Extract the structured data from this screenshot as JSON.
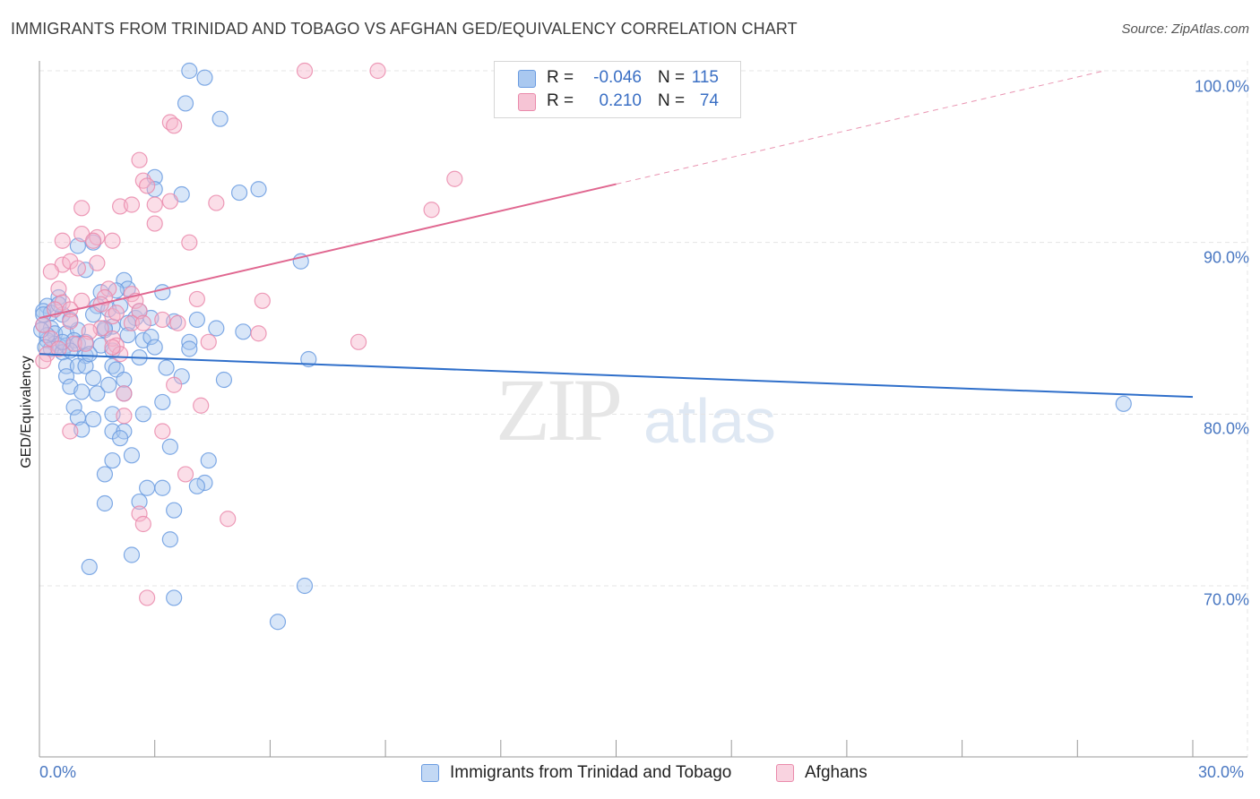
{
  "title": "IMMIGRANTS FROM TRINIDAD AND TOBAGO VS AFGHAN GED/EQUIVALENCY CORRELATION CHART",
  "source": "Source: ZipAtlas.com",
  "watermark": {
    "zip": "ZIP",
    "atlas": "atlas"
  },
  "colors": {
    "blue_fill": "#a9c8f0",
    "blue_stroke": "#6a9be0",
    "blue_line": "#2f6fca",
    "pink_fill": "#f6b6cc",
    "pink_stroke": "#ea8aab",
    "pink_line": "#e06790",
    "tick_text": "#4a78c2",
    "grid": "#e4e4e4"
  },
  "legend": {
    "rows": [
      {
        "r_label": "R =",
        "r_value": "-0.046",
        "n_label": "N =",
        "n_value": "115"
      },
      {
        "r_label": "R =",
        "r_value": "0.210",
        "n_label": "N =",
        "n_value": "74"
      }
    ]
  },
  "chart_data": {
    "type": "scatter",
    "title": "IMMIGRANTS FROM TRINIDAD AND TOBAGO VS AFGHAN GED/EQUIVALENCY CORRELATION CHART",
    "xlabel": "",
    "ylabel": "GED/Equivalency",
    "xlim": [
      0,
      30
    ],
    "ylim": [
      60.5,
      101
    ],
    "x_tick_labels": [
      "0.0%",
      "30.0%"
    ],
    "y_ticks": [
      70,
      80,
      90,
      100
    ],
    "y_tick_labels": [
      "70.0%",
      "80.0%",
      "90.0%",
      "100.0%"
    ],
    "grid": true,
    "series": [
      {
        "name": "Immigrants from Trinidad and Tobago",
        "r": -0.046,
        "n": 115,
        "trend": {
          "x0": 0,
          "y0": 83.5,
          "x1": 30,
          "y1": 81.0,
          "solid_until": 30
        },
        "points": [
          [
            3.9,
            100
          ],
          [
            4.3,
            99.6
          ],
          [
            3.8,
            98.1
          ],
          [
            4.7,
            97.2
          ],
          [
            3.0,
            93.8
          ],
          [
            3.0,
            93.1
          ],
          [
            3.7,
            92.8
          ],
          [
            5.2,
            92.9
          ],
          [
            5.7,
            93.1
          ],
          [
            1.4,
            90.0
          ],
          [
            1.0,
            89.8
          ],
          [
            1.2,
            88.4
          ],
          [
            2.2,
            87.8
          ],
          [
            2.3,
            87.3
          ],
          [
            2.0,
            87.2
          ],
          [
            3.2,
            87.1
          ],
          [
            1.6,
            87.1
          ],
          [
            0.5,
            86.8
          ],
          [
            0.2,
            86.3
          ],
          [
            0.1,
            86.0
          ],
          [
            0.3,
            85.9
          ],
          [
            0.6,
            85.8
          ],
          [
            1.5,
            86.3
          ],
          [
            1.4,
            85.8
          ],
          [
            1.8,
            86.1
          ],
          [
            2.1,
            86.3
          ],
          [
            2.5,
            85.6
          ],
          [
            2.9,
            85.6
          ],
          [
            3.5,
            85.4
          ],
          [
            4.1,
            85.5
          ],
          [
            0.1,
            85.2
          ],
          [
            0.3,
            85.0
          ],
          [
            0.4,
            84.7
          ],
          [
            0.7,
            84.7
          ],
          [
            1.0,
            84.9
          ],
          [
            1.7,
            84.9
          ],
          [
            1.9,
            85.1
          ],
          [
            2.3,
            85.3
          ],
          [
            0.2,
            84.3
          ],
          [
            0.4,
            84.1
          ],
          [
            0.5,
            84.0
          ],
          [
            0.7,
            84.0
          ],
          [
            0.9,
            84.3
          ],
          [
            1.0,
            84.1
          ],
          [
            1.2,
            84.2
          ],
          [
            1.6,
            84.0
          ],
          [
            2.7,
            84.3
          ],
          [
            2.9,
            84.5
          ],
          [
            3.0,
            83.9
          ],
          [
            3.9,
            84.2
          ],
          [
            3.9,
            83.8
          ],
          [
            4.6,
            85.0
          ],
          [
            5.3,
            84.8
          ],
          [
            0.3,
            83.8
          ],
          [
            0.6,
            83.6
          ],
          [
            0.8,
            83.7
          ],
          [
            1.2,
            83.4
          ],
          [
            1.9,
            83.7
          ],
          [
            2.6,
            83.3
          ],
          [
            7.0,
            83.2
          ],
          [
            0.7,
            82.8
          ],
          [
            1.0,
            82.8
          ],
          [
            1.2,
            82.8
          ],
          [
            1.9,
            82.8
          ],
          [
            2.0,
            82.6
          ],
          [
            3.3,
            82.7
          ],
          [
            0.7,
            82.2
          ],
          [
            1.4,
            82.1
          ],
          [
            2.2,
            82.0
          ],
          [
            3.7,
            82.2
          ],
          [
            4.8,
            82.0
          ],
          [
            0.8,
            81.6
          ],
          [
            1.1,
            81.3
          ],
          [
            1.5,
            81.2
          ],
          [
            2.2,
            81.2
          ],
          [
            1.8,
            81.7
          ],
          [
            3.2,
            80.7
          ],
          [
            0.9,
            80.4
          ],
          [
            1.0,
            79.8
          ],
          [
            1.4,
            79.7
          ],
          [
            1.9,
            80.0
          ],
          [
            2.7,
            80.0
          ],
          [
            1.1,
            79.1
          ],
          [
            1.9,
            79.0
          ],
          [
            2.2,
            79.0
          ],
          [
            2.1,
            78.6
          ],
          [
            3.4,
            78.1
          ],
          [
            2.4,
            77.6
          ],
          [
            4.4,
            77.3
          ],
          [
            1.9,
            77.3
          ],
          [
            1.7,
            76.5
          ],
          [
            4.3,
            76.0
          ],
          [
            3.2,
            75.7
          ],
          [
            2.8,
            75.7
          ],
          [
            4.1,
            75.8
          ],
          [
            2.6,
            74.9
          ],
          [
            1.7,
            74.8
          ],
          [
            3.5,
            74.4
          ],
          [
            3.4,
            72.7
          ],
          [
            2.4,
            71.8
          ],
          [
            1.3,
            71.1
          ],
          [
            6.9,
            70.0
          ],
          [
            3.5,
            69.3
          ],
          [
            6.2,
            67.9
          ],
          [
            6.8,
            88.9
          ],
          [
            0.1,
            85.8
          ],
          [
            0.2,
            84.6
          ],
          [
            0.6,
            84.2
          ],
          [
            1.3,
            83.5
          ],
          [
            2.6,
            86.0
          ],
          [
            0.8,
            85.5
          ],
          [
            28.2,
            80.6
          ],
          [
            0.05,
            84.9
          ],
          [
            0.15,
            83.9
          ],
          [
            1.7,
            85.0
          ],
          [
            2.3,
            84.6
          ],
          [
            0.5,
            86.4
          ]
        ]
      },
      {
        "name": "Afghans",
        "r": 0.21,
        "n": 74,
        "trend": {
          "x0": 0,
          "y0": 85.6,
          "x1": 27.7,
          "y1": 100.0,
          "solid_until": 15
        },
        "points": [
          [
            6.9,
            100
          ],
          [
            8.8,
            100
          ],
          [
            3.4,
            97.0
          ],
          [
            3.5,
            96.8
          ],
          [
            2.6,
            94.8
          ],
          [
            2.7,
            93.6
          ],
          [
            10.8,
            93.7
          ],
          [
            2.8,
            93.3
          ],
          [
            1.1,
            92.0
          ],
          [
            2.1,
            92.1
          ],
          [
            2.4,
            92.2
          ],
          [
            3.0,
            92.2
          ],
          [
            3.4,
            92.4
          ],
          [
            4.6,
            92.3
          ],
          [
            10.2,
            91.9
          ],
          [
            3.0,
            91.1
          ],
          [
            0.6,
            90.1
          ],
          [
            1.1,
            90.5
          ],
          [
            1.5,
            90.3
          ],
          [
            1.9,
            90.1
          ],
          [
            1.4,
            90.1
          ],
          [
            3.9,
            90.0
          ],
          [
            0.6,
            88.7
          ],
          [
            0.8,
            88.9
          ],
          [
            0.3,
            88.3
          ],
          [
            1.5,
            88.8
          ],
          [
            0.5,
            87.3
          ],
          [
            1.8,
            87.3
          ],
          [
            2.4,
            87.0
          ],
          [
            1.7,
            86.8
          ],
          [
            0.6,
            86.5
          ],
          [
            1.1,
            86.6
          ],
          [
            1.6,
            86.4
          ],
          [
            2.5,
            86.6
          ],
          [
            4.1,
            86.7
          ],
          [
            5.8,
            86.6
          ],
          [
            0.4,
            86.1
          ],
          [
            0.8,
            86.1
          ],
          [
            1.9,
            85.7
          ],
          [
            2.0,
            85.9
          ],
          [
            2.6,
            86.0
          ],
          [
            3.2,
            85.5
          ],
          [
            0.1,
            85.2
          ],
          [
            0.8,
            85.4
          ],
          [
            1.6,
            85.0
          ],
          [
            2.4,
            85.3
          ],
          [
            1.3,
            84.8
          ],
          [
            1.9,
            84.4
          ],
          [
            5.7,
            84.7
          ],
          [
            3.6,
            85.3
          ],
          [
            0.3,
            84.4
          ],
          [
            0.9,
            84.1
          ],
          [
            1.2,
            84.1
          ],
          [
            2.0,
            84.0
          ],
          [
            4.4,
            84.2
          ],
          [
            8.3,
            84.2
          ],
          [
            0.2,
            83.5
          ],
          [
            0.5,
            83.8
          ],
          [
            2.1,
            83.5
          ],
          [
            1.9,
            83.9
          ],
          [
            3.5,
            81.7
          ],
          [
            2.2,
            81.2
          ],
          [
            4.2,
            80.5
          ],
          [
            2.2,
            79.9
          ],
          [
            0.8,
            79.0
          ],
          [
            3.2,
            79.0
          ],
          [
            3.8,
            76.5
          ],
          [
            4.9,
            73.9
          ],
          [
            2.6,
            74.2
          ],
          [
            2.7,
            73.6
          ],
          [
            2.8,
            69.3
          ],
          [
            0.1,
            83.1
          ],
          [
            1.0,
            88.5
          ],
          [
            2.7,
            85.3
          ]
        ]
      }
    ]
  }
}
